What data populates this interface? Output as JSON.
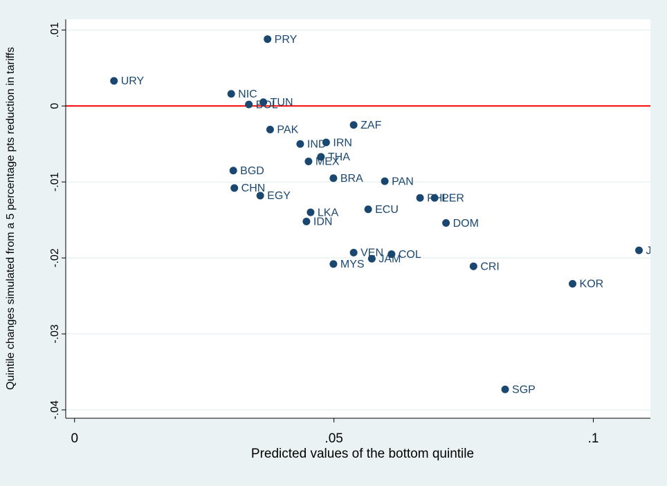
{
  "chart_data": {
    "type": "scatter",
    "x_label": "Predicted values of the bottom quintile",
    "y_label": "Quintile changes simulated from a 5 percentage pts reduction in tariffs",
    "labels": [
      "PRY",
      "URY",
      "NIC",
      "BOL",
      "TUN",
      "PAK",
      "ZAF",
      "IND",
      "IRN",
      "THA",
      "MEX",
      "BGD",
      "BRA",
      "PAN",
      "CHN",
      "EGY",
      "PHL",
      "PER",
      "ECU",
      "LKA",
      "DOM",
      "IDN",
      "VEN",
      "COL",
      "JAM",
      "MYS",
      "CRI",
      "JOR",
      "KOR",
      "SGP"
    ],
    "x": [
      0.0372,
      0.0076,
      0.0302,
      0.0336,
      0.0364,
      0.0377,
      0.0538,
      0.0435,
      0.0485,
      0.0475,
      0.0451,
      0.0306,
      0.0499,
      0.0598,
      0.0308,
      0.0358,
      0.0666,
      0.0694,
      0.0566,
      0.0455,
      0.0716,
      0.0447,
      0.0538,
      0.0611,
      0.0573,
      0.0499,
      0.0769,
      0.1088,
      0.096,
      0.083
    ],
    "y": [
      0.0088,
      0.0033,
      0.0016,
      0.0002,
      0.0005,
      -0.0031,
      -0.0025,
      -0.005,
      -0.0048,
      -0.0067,
      -0.0073,
      -0.0085,
      -0.0095,
      -0.0099,
      -0.0108,
      -0.0118,
      -0.0121,
      -0.0121,
      -0.0136,
      -0.014,
      -0.0154,
      -0.0152,
      -0.0193,
      -0.0195,
      -0.0201,
      -0.0208,
      -0.0211,
      -0.019,
      -0.0234,
      -0.0373
    ],
    "color": "#1a476f",
    "xlim": [
      -0.0017,
      0.111
    ],
    "ylim": [
      -0.0411,
      0.0114
    ],
    "xticks": [
      0,
      {
        "value": 0.05,
        "label": ".05"
      },
      {
        "value": 0.1,
        "label": ".1"
      }
    ],
    "yticks": [
      {
        "value": -0.04,
        "label": "-.04"
      },
      {
        "value": -0.03,
        "label": "-.03"
      },
      {
        "value": -0.02,
        "label": "-.02"
      },
      {
        "value": -0.01,
        "label": "-.01"
      },
      0,
      {
        "value": 0.01,
        "label": ".01"
      }
    ],
    "grid": true,
    "reference_line": {
      "value": 0,
      "color": "#ff0000"
    }
  }
}
